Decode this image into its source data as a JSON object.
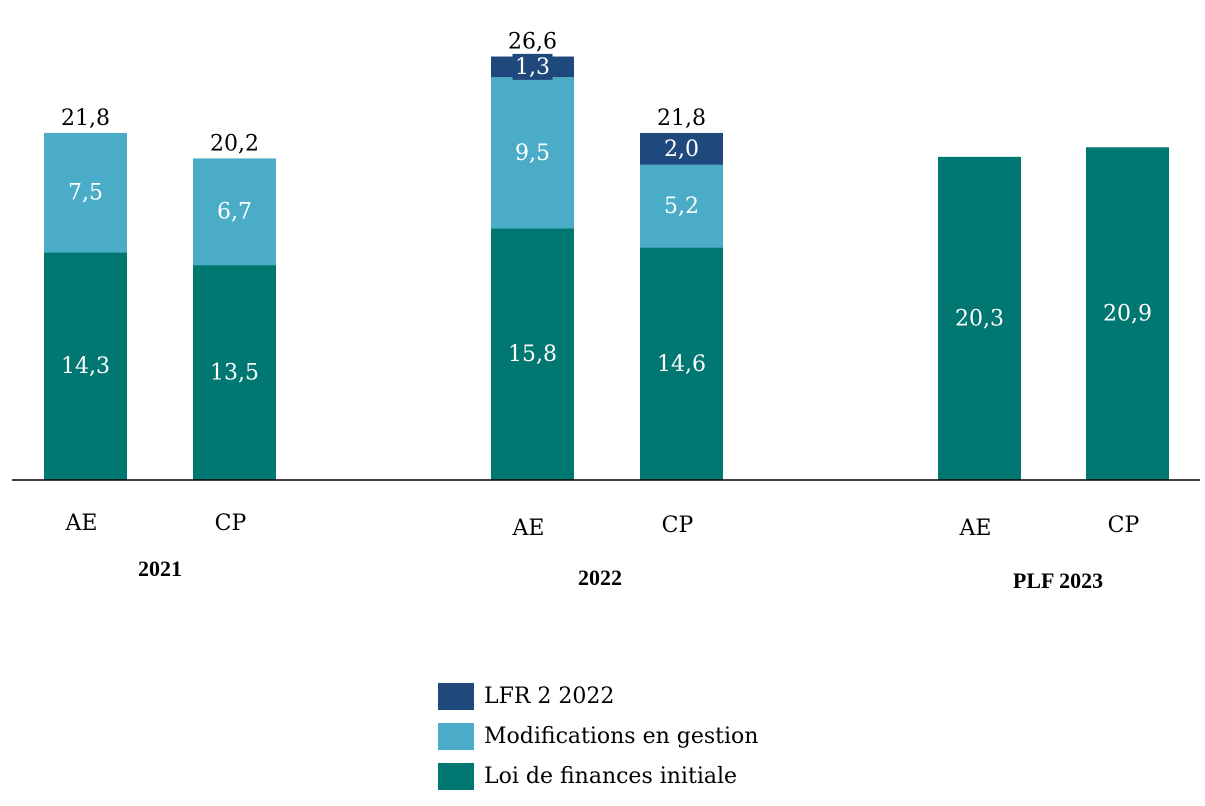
{
  "chart_data": {
    "type": "bar",
    "stacked": true,
    "title": "",
    "xlabel": "",
    "ylabel": "",
    "ylim": [
      0,
      30
    ],
    "grid": false,
    "groups": [
      {
        "label": "2021",
        "categories": [
          "AE",
          "CP"
        ]
      },
      {
        "label": "2022",
        "categories": [
          "AE",
          "CP"
        ]
      },
      {
        "label": "PLF 2023",
        "categories": [
          "AE",
          "CP"
        ]
      }
    ],
    "categories": [
      "2021 AE",
      "2021 CP",
      "2022 AE",
      "2022 CP",
      "PLF 2023 AE",
      "PLF 2023 CP"
    ],
    "series": [
      {
        "name": "Loi de finances initiale",
        "color": "#007770",
        "values": [
          14.3,
          13.5,
          15.8,
          14.6,
          20.3,
          20.9
        ],
        "labels": [
          "14,3",
          "13,5",
          "15,8",
          "14,6",
          "20,3",
          "20,9"
        ]
      },
      {
        "name": "Modifications en gestion",
        "color": "#4AACC6",
        "values": [
          7.5,
          6.7,
          9.5,
          5.2,
          0,
          0
        ],
        "labels": [
          "7,5",
          "6,7",
          "9,5",
          "5,2",
          "",
          ""
        ]
      },
      {
        "name": "LFR 2 2022",
        "color": "#1F497D",
        "values": [
          0,
          0,
          1.3,
          2.0,
          0,
          0
        ],
        "labels": [
          "",
          "",
          "1,3",
          "2,0",
          "",
          ""
        ]
      }
    ],
    "totals": [
      "21,8",
      "20,2",
      "26,6",
      "21,8",
      "",
      ""
    ],
    "legend": {
      "placement": "bottom-center",
      "entries": [
        {
          "label": "LFR 2 2022",
          "color": "#1F497D"
        },
        {
          "label": "Modifications en gestion",
          "color": "#4AACC6"
        },
        {
          "label": "Loi de finances initiale",
          "color": "#007770"
        }
      ]
    }
  }
}
